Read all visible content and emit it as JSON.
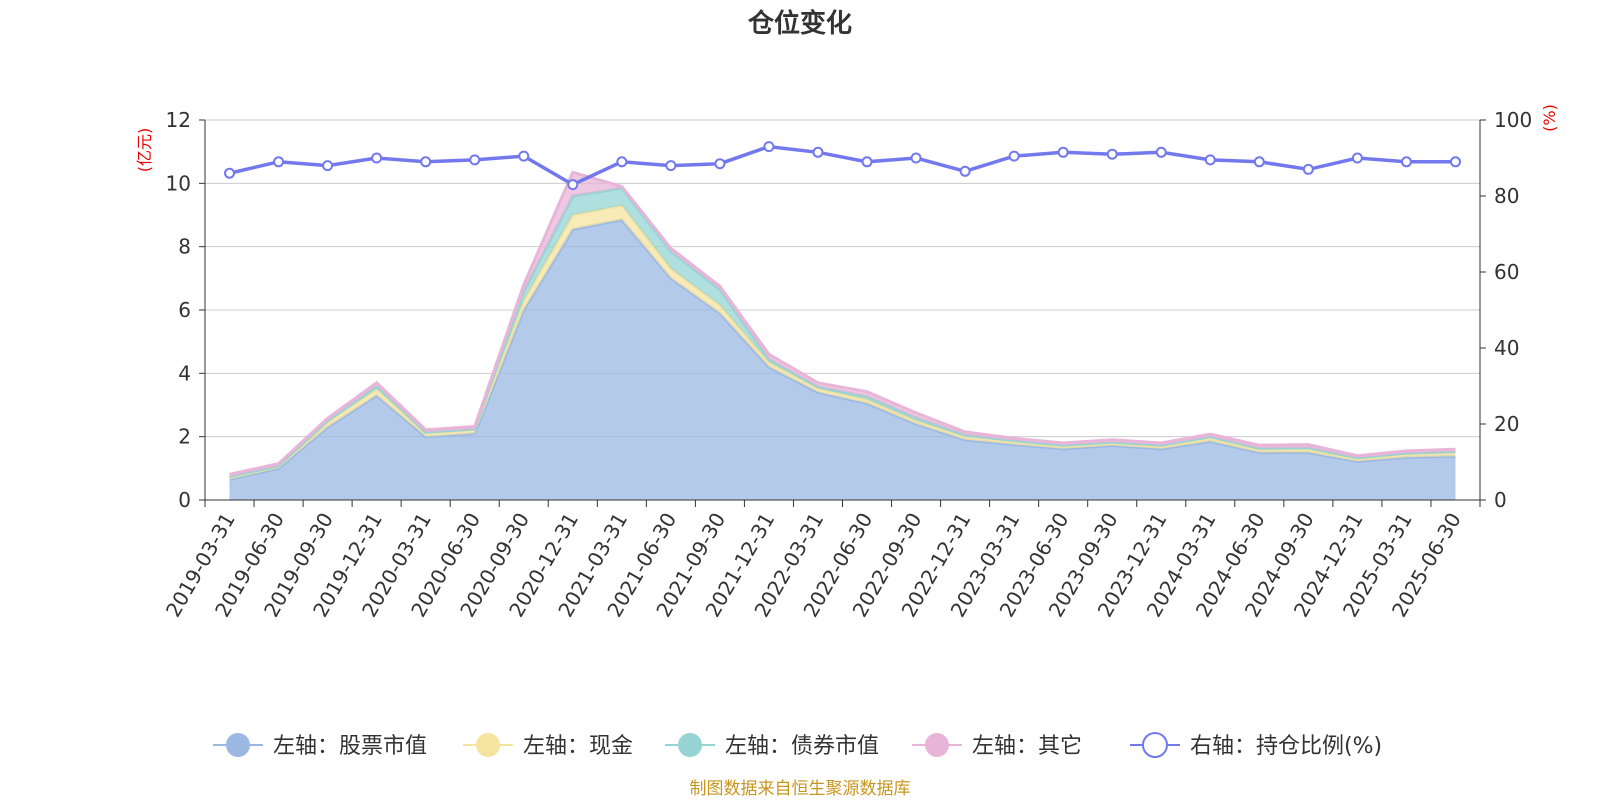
{
  "chart_data": {
    "type": "area",
    "title": "仓位变化",
    "left_unit": "(亿元)",
    "right_unit": "(%)",
    "x": [
      "2019-03-31",
      "2019-06-30",
      "2019-09-30",
      "2019-12-31",
      "2020-03-31",
      "2020-06-30",
      "2020-09-30",
      "2020-12-31",
      "2021-03-31",
      "2021-06-30",
      "2021-09-30",
      "2021-12-31",
      "2022-03-31",
      "2022-06-30",
      "2022-09-30",
      "2022-12-31",
      "2023-03-31",
      "2023-06-30",
      "2023-09-30",
      "2023-12-31",
      "2024-03-31",
      "2024-06-30",
      "2024-09-30",
      "2024-12-31",
      "2025-03-31",
      "2025-06-30"
    ],
    "left_axis": {
      "min": 0,
      "max": 12,
      "ticks": [
        "0",
        "2",
        "4",
        "6",
        "8",
        "10",
        "12"
      ]
    },
    "right_axis": {
      "min": 0,
      "max": 100,
      "ticks": [
        "0",
        "20",
        "40",
        "60",
        "80",
        "100"
      ]
    },
    "grid": true,
    "legend_position": "bottom",
    "series": [
      {
        "name": "左轴：股票市值",
        "axis": "left",
        "stacked": true,
        "color": "#9bb8e3",
        "values": [
          0.65,
          1.0,
          2.3,
          3.3,
          2.0,
          2.1,
          6.0,
          8.55,
          8.85,
          7.0,
          5.9,
          4.2,
          3.4,
          3.05,
          2.4,
          1.9,
          1.75,
          1.62,
          1.72,
          1.62,
          1.85,
          1.5,
          1.5,
          1.22,
          1.35,
          1.38
        ]
      },
      {
        "name": "左轴：现金",
        "axis": "left",
        "stacked": true,
        "color": "#f5e4a0",
        "values": [
          0.07,
          0.06,
          0.15,
          0.2,
          0.12,
          0.12,
          0.3,
          0.45,
          0.45,
          0.3,
          0.25,
          0.15,
          0.12,
          0.12,
          0.1,
          0.1,
          0.1,
          0.08,
          0.08,
          0.08,
          0.1,
          0.1,
          0.1,
          0.08,
          0.1,
          0.12
        ]
      },
      {
        "name": "左轴：债券市值",
        "axis": "left",
        "stacked": true,
        "color": "#96d4d4",
        "values": [
          0.02,
          0.02,
          0.05,
          0.1,
          0.02,
          0.02,
          0.3,
          0.6,
          0.55,
          0.55,
          0.5,
          0.1,
          0.05,
          0.1,
          0.1,
          0.05,
          0.03,
          0.03,
          0.03,
          0.03,
          0.05,
          0.03,
          0.05,
          0.03,
          0.03,
          0.03
        ]
      },
      {
        "name": "左轴：其它",
        "axis": "left",
        "stacked": true,
        "color": "#e8b5d8",
        "values": [
          0.07,
          0.07,
          0.08,
          0.1,
          0.08,
          0.08,
          0.2,
          0.75,
          0.05,
          0.1,
          0.1,
          0.15,
          0.13,
          0.15,
          0.15,
          0.1,
          0.07,
          0.07,
          0.07,
          0.07,
          0.08,
          0.1,
          0.1,
          0.07,
          0.07,
          0.07
        ]
      },
      {
        "name": "右轴：持仓比例(%)",
        "axis": "right",
        "type": "line",
        "color": "#7379ed",
        "values": [
          86,
          89,
          88,
          90,
          89,
          89.5,
          90.5,
          83,
          89,
          88,
          88.5,
          93,
          91.5,
          89,
          90,
          86.5,
          90.5,
          91.5,
          91,
          91.5,
          89.5,
          89,
          87,
          90,
          89,
          89
        ]
      }
    ],
    "source": "制图数据来自恒生聚源数据库"
  }
}
